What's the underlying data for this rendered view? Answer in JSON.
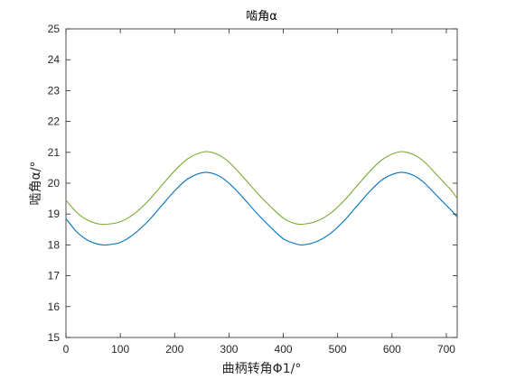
{
  "chart_data": {
    "type": "line",
    "title": "啮角α",
    "xlabel": "曲柄转角Φ1/°",
    "ylabel": "啮角α/°",
    "xlim": [
      0,
      720
    ],
    "ylim": [
      15,
      25
    ],
    "xticks": [
      0,
      100,
      200,
      300,
      400,
      500,
      600,
      700
    ],
    "yticks": [
      15,
      16,
      17,
      18,
      19,
      20,
      21,
      22,
      23,
      24,
      25
    ],
    "grid": false,
    "series": [
      {
        "color": "#0072BD",
        "x": [
          0,
          20,
          40,
          60,
          75,
          100,
          125,
          150,
          175,
          200,
          225,
          255,
          280,
          300,
          325,
          350,
          375,
          400,
          420,
          435,
          460,
          485,
          510,
          535,
          560,
          585,
          615,
          640,
          660,
          685,
          710,
          720
        ],
        "y": [
          18.85,
          18.42,
          18.15,
          18.02,
          18.0,
          18.08,
          18.35,
          18.75,
          19.25,
          19.75,
          20.15,
          20.35,
          20.25,
          20.0,
          19.55,
          19.05,
          18.6,
          18.2,
          18.05,
          18.0,
          18.1,
          18.35,
          18.75,
          19.25,
          19.75,
          20.15,
          20.35,
          20.25,
          20.0,
          19.55,
          19.1,
          18.9
        ]
      },
      {
        "color": "#77AC30",
        "x": [
          0,
          20,
          40,
          60,
          75,
          100,
          125,
          150,
          175,
          200,
          225,
          255,
          280,
          300,
          325,
          350,
          375,
          400,
          420,
          435,
          460,
          485,
          510,
          535,
          560,
          585,
          615,
          640,
          660,
          685,
          710,
          720
        ],
        "y": [
          19.45,
          19.05,
          18.8,
          18.68,
          18.67,
          18.75,
          19.0,
          19.4,
          19.9,
          20.4,
          20.8,
          21.02,
          20.92,
          20.68,
          20.22,
          19.72,
          19.27,
          18.87,
          18.7,
          18.67,
          18.76,
          19.0,
          19.4,
          19.9,
          20.4,
          20.8,
          21.02,
          20.92,
          20.68,
          20.22,
          19.75,
          19.5
        ]
      }
    ]
  }
}
